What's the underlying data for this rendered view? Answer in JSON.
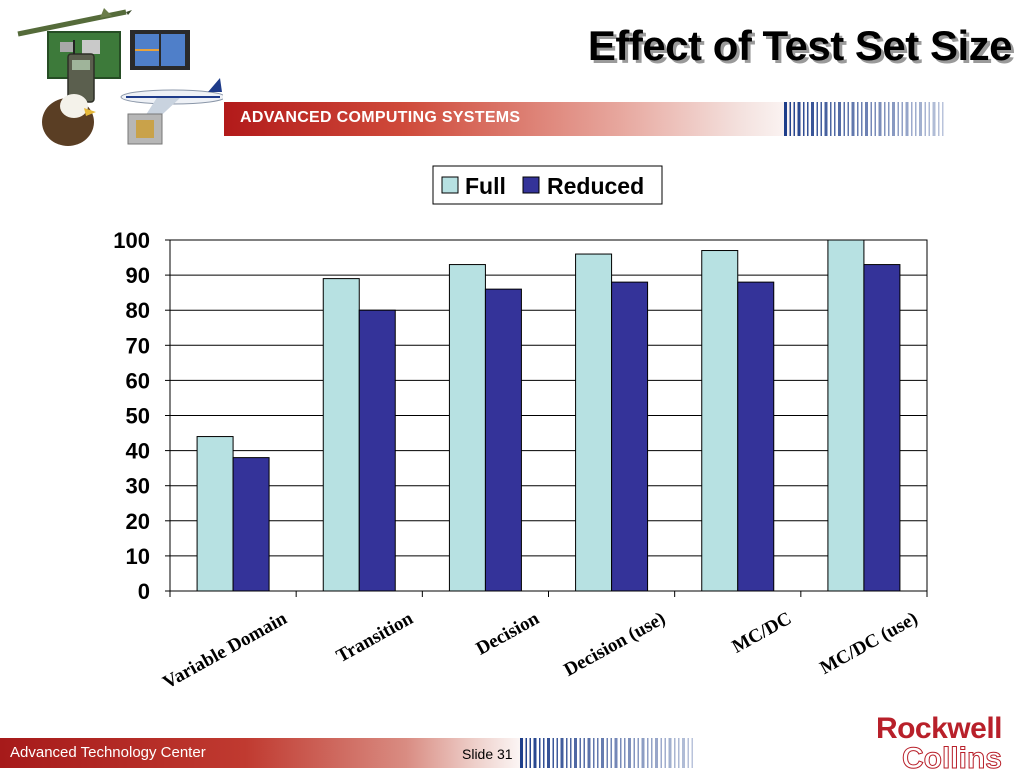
{
  "slide": {
    "title": "Effect of Test Set Size",
    "banner_text": "ADVANCED COMPUTING SYSTEMS",
    "footer_left": "Advanced Technology Center",
    "slide_number": "Slide 31",
    "logo_line1": "Rockwell",
    "logo_line2": "Collins"
  },
  "colors": {
    "full": "#b7e1e2",
    "reduced": "#343399",
    "brand_red": "#b8202a"
  },
  "chart_data": {
    "type": "bar",
    "categories": [
      "Variable Domain",
      "Transition",
      "Decision",
      "Decision (use)",
      "MC/DC",
      "MC/DC (use)"
    ],
    "series": [
      {
        "name": "Full",
        "values": [
          44,
          89,
          93,
          96,
          97,
          100
        ]
      },
      {
        "name": "Reduced",
        "values": [
          38,
          80,
          86,
          88,
          88,
          93
        ]
      }
    ],
    "ylim": [
      0,
      100
    ],
    "yticks": [
      0,
      10,
      20,
      30,
      40,
      50,
      60,
      70,
      80,
      90,
      100
    ],
    "legend_position": "top",
    "grid": true
  }
}
